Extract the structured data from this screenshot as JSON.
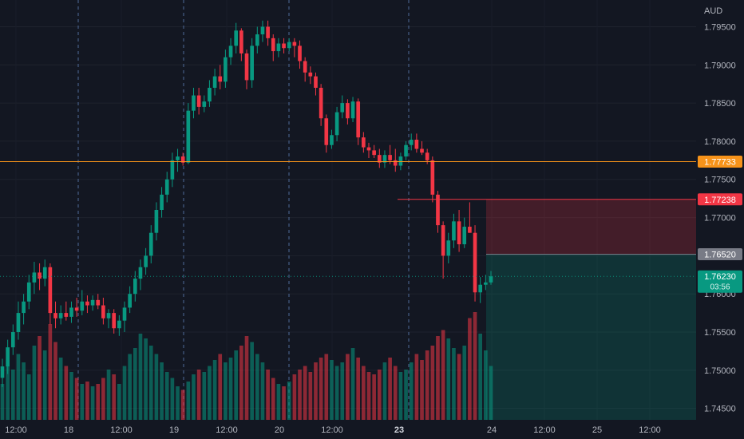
{
  "chart_data": {
    "type": "candlestick",
    "currency_label": "AUD",
    "y_ticks": [
      1.745,
      1.75,
      1.755,
      1.76,
      1.765,
      1.77,
      1.775,
      1.78,
      1.785,
      1.79,
      1.795
    ],
    "y_tick_labels": [
      "1.74500",
      "1.75000",
      "1.75500",
      "1.76000",
      "1.76500",
      "1.77000",
      "1.77500",
      "1.78000",
      "1.78500",
      "1.79000",
      "1.79500"
    ],
    "ylim": [
      1.7435,
      1.7985
    ],
    "x_tick_labels": [
      "12:00",
      "18",
      "12:00",
      "19",
      "12:00",
      "20",
      "12:00",
      "23",
      "24",
      "12:00",
      "25",
      "12:00"
    ],
    "x_tick_bold": "23",
    "price_levels": [
      {
        "name": "horizontal-line",
        "value": 1.77733,
        "label": "1.77733",
        "color": "#f7931a"
      },
      {
        "name": "stop-loss",
        "value": 1.77238,
        "label": "1.77238",
        "color": "#f23645"
      },
      {
        "name": "entry",
        "value": 1.7652,
        "label": "1.76520",
        "color": "#787b86"
      },
      {
        "name": "current-price",
        "value": 1.7623,
        "label": "1.76230",
        "countdown": "03:56",
        "color": "#089981"
      }
    ],
    "position": {
      "type": "short",
      "entry": 1.7652,
      "stop": 1.77238,
      "target": 1.7435
    },
    "bull_color": "#089981",
    "bear_color": "#f23645",
    "candles": [
      [
        1.749,
        1.7515,
        1.7478,
        1.7505
      ],
      [
        1.7505,
        1.754,
        1.7495,
        1.753
      ],
      [
        1.753,
        1.756,
        1.752,
        1.755
      ],
      [
        1.755,
        1.759,
        1.754,
        1.7575
      ],
      [
        1.7575,
        1.76,
        1.756,
        1.759
      ],
      [
        1.759,
        1.7625,
        1.758,
        1.7615
      ],
      [
        1.7615,
        1.7642,
        1.76,
        1.7628
      ],
      [
        1.7628,
        1.764,
        1.7605,
        1.762
      ],
      [
        1.762,
        1.7645,
        1.761,
        1.7635
      ],
      [
        1.7635,
        1.764,
        1.756,
        1.7575
      ],
      [
        1.7575,
        1.759,
        1.7555,
        1.7568
      ],
      [
        1.7568,
        1.7585,
        1.756,
        1.7575
      ],
      [
        1.7575,
        1.759,
        1.7565,
        1.757
      ],
      [
        1.757,
        1.759,
        1.7562,
        1.7582
      ],
      [
        1.7582,
        1.7595,
        1.757,
        1.7578
      ],
      [
        1.7578,
        1.7605,
        1.7572,
        1.759
      ],
      [
        1.759,
        1.7598,
        1.7575,
        1.7585
      ],
      [
        1.7585,
        1.7598,
        1.7578,
        1.7592
      ],
      [
        1.7592,
        1.76,
        1.758,
        1.7585
      ],
      [
        1.7585,
        1.7595,
        1.756,
        1.7568
      ],
      [
        1.7568,
        1.758,
        1.7555,
        1.7575
      ],
      [
        1.7575,
        1.758,
        1.7548,
        1.7555
      ],
      [
        1.7555,
        1.7572,
        1.7545,
        1.7565
      ],
      [
        1.7565,
        1.759,
        1.755,
        1.7582
      ],
      [
        1.7582,
        1.761,
        1.7575,
        1.76
      ],
      [
        1.76,
        1.763,
        1.759,
        1.762
      ],
      [
        1.762,
        1.7645,
        1.7605,
        1.7635
      ],
      [
        1.7635,
        1.766,
        1.7625,
        1.765
      ],
      [
        1.765,
        1.769,
        1.764,
        1.768
      ],
      [
        1.768,
        1.772,
        1.767,
        1.771
      ],
      [
        1.771,
        1.774,
        1.77,
        1.773
      ],
      [
        1.773,
        1.776,
        1.772,
        1.775
      ],
      [
        1.775,
        1.7785,
        1.774,
        1.7775
      ],
      [
        1.7775,
        1.779,
        1.776,
        1.778
      ],
      [
        1.778,
        1.7785,
        1.7768,
        1.7772
      ],
      [
        1.7772,
        1.785,
        1.777,
        1.784
      ],
      [
        1.784,
        1.787,
        1.783,
        1.786
      ],
      [
        1.786,
        1.787,
        1.7835,
        1.7845
      ],
      [
        1.7845,
        1.786,
        1.7838,
        1.7852
      ],
      [
        1.7852,
        1.788,
        1.7845,
        1.787
      ],
      [
        1.787,
        1.7895,
        1.786,
        1.7885
      ],
      [
        1.7885,
        1.79,
        1.7868,
        1.7878
      ],
      [
        1.7878,
        1.792,
        1.787,
        1.791
      ],
      [
        1.791,
        1.7935,
        1.79,
        1.7925
      ],
      [
        1.7925,
        1.7955,
        1.7915,
        1.7945
      ],
      [
        1.7945,
        1.7948,
        1.7905,
        1.7915
      ],
      [
        1.7915,
        1.792,
        1.7868,
        1.788
      ],
      [
        1.788,
        1.7935,
        1.787,
        1.7925
      ],
      [
        1.7925,
        1.795,
        1.7915,
        1.794
      ],
      [
        1.794,
        1.7958,
        1.793,
        1.795
      ],
      [
        1.795,
        1.7958,
        1.7925,
        1.7935
      ],
      [
        1.7935,
        1.794,
        1.7905,
        1.7918
      ],
      [
        1.7918,
        1.7935,
        1.791,
        1.7928
      ],
      [
        1.7928,
        1.7935,
        1.7915,
        1.7922
      ],
      [
        1.7922,
        1.7935,
        1.7918,
        1.793
      ],
      [
        1.793,
        1.7935,
        1.791,
        1.7925
      ],
      [
        1.7925,
        1.7932,
        1.7895,
        1.7905
      ],
      [
        1.7905,
        1.791,
        1.7878,
        1.789
      ],
      [
        1.789,
        1.7898,
        1.7875,
        1.7885
      ],
      [
        1.7885,
        1.789,
        1.786,
        1.787
      ],
      [
        1.787,
        1.7875,
        1.782,
        1.783
      ],
      [
        1.783,
        1.7835,
        1.7785,
        1.7795
      ],
      [
        1.7795,
        1.7815,
        1.779,
        1.7808
      ],
      [
        1.7808,
        1.7845,
        1.78,
        1.7838
      ],
      [
        1.7838,
        1.786,
        1.783,
        1.785
      ],
      [
        1.785,
        1.7855,
        1.7822,
        1.783
      ],
      [
        1.783,
        1.7858,
        1.7825,
        1.7852
      ],
      [
        1.7852,
        1.7856,
        1.7795,
        1.7805
      ],
      [
        1.7805,
        1.7812,
        1.7785,
        1.7792
      ],
      [
        1.7792,
        1.7798,
        1.7778,
        1.7788
      ],
      [
        1.7788,
        1.7795,
        1.7778,
        1.7782
      ],
      [
        1.7782,
        1.779,
        1.7765,
        1.7772
      ],
      [
        1.7772,
        1.7788,
        1.7765,
        1.7782
      ],
      [
        1.7782,
        1.7795,
        1.777,
        1.7775
      ],
      [
        1.7775,
        1.779,
        1.776,
        1.7768
      ],
      [
        1.7768,
        1.7785,
        1.7762,
        1.778
      ],
      [
        1.778,
        1.78,
        1.7775,
        1.7795
      ],
      [
        1.7795,
        1.781,
        1.7788,
        1.7802
      ],
      [
        1.7802,
        1.781,
        1.7785,
        1.779
      ],
      [
        1.779,
        1.78,
        1.7782,
        1.7785
      ],
      [
        1.7785,
        1.779,
        1.777,
        1.7775
      ],
      [
        1.7775,
        1.778,
        1.772,
        1.773
      ],
      [
        1.773,
        1.7735,
        1.768,
        1.769
      ],
      [
        1.769,
        1.7695,
        1.762,
        1.765
      ],
      [
        1.765,
        1.768,
        1.764,
        1.767
      ],
      [
        1.767,
        1.7705,
        1.766,
        1.7695
      ],
      [
        1.7695,
        1.771,
        1.7655,
        1.7665
      ],
      [
        1.7665,
        1.77,
        1.766,
        1.7688
      ],
      [
        1.7688,
        1.772,
        1.768,
        1.768
      ],
      [
        1.768,
        1.769,
        1.759,
        1.7602
      ],
      [
        1.7602,
        1.7622,
        1.7588,
        1.7612
      ],
      [
        1.7612,
        1.7625,
        1.7605,
        1.7615
      ],
      [
        1.7615,
        1.763,
        1.7612,
        1.7623
      ]
    ],
    "volumes": [
      0.3,
      0.45,
      0.42,
      0.55,
      0.48,
      0.38,
      0.62,
      0.7,
      0.58,
      0.8,
      0.65,
      0.52,
      0.45,
      0.4,
      0.35,
      0.3,
      0.32,
      0.28,
      0.3,
      0.35,
      0.42,
      0.38,
      0.3,
      0.45,
      0.55,
      0.6,
      0.72,
      0.68,
      0.62,
      0.55,
      0.48,
      0.4,
      0.35,
      0.28,
      0.25,
      0.32,
      0.38,
      0.42,
      0.4,
      0.45,
      0.5,
      0.55,
      0.48,
      0.52,
      0.58,
      0.62,
      0.7,
      0.65,
      0.55,
      0.48,
      0.42,
      0.35,
      0.3,
      0.28,
      0.32,
      0.38,
      0.42,
      0.45,
      0.4,
      0.48,
      0.52,
      0.55,
      0.5,
      0.45,
      0.48,
      0.55,
      0.6,
      0.52,
      0.45,
      0.4,
      0.38,
      0.42,
      0.48,
      0.52,
      0.45,
      0.4,
      0.42,
      0.48,
      0.55,
      0.5,
      0.58,
      0.62,
      0.7,
      0.75,
      0.68,
      0.6,
      0.55,
      0.62,
      0.85,
      0.9,
      0.72,
      0.58,
      0.45
    ]
  }
}
